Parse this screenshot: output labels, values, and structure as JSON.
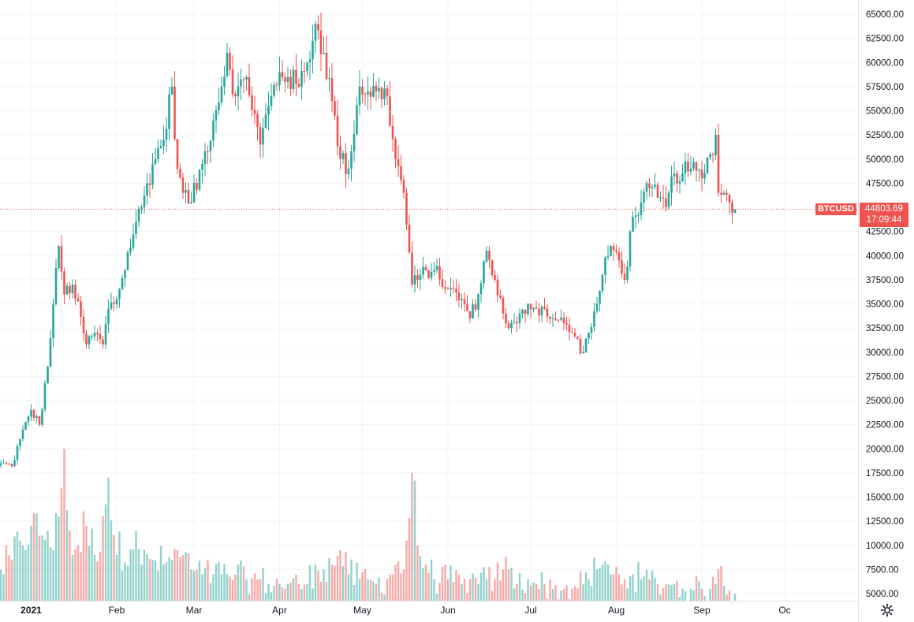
{
  "chart_data": {
    "type": "candlestick",
    "symbol": "BTCUSD",
    "last_price": "44803.69",
    "countdown": "17:09:44",
    "last_price_value": 44803.69,
    "ylim": [
      4500,
      66000
    ],
    "y_ticks": [
      "65000.00",
      "62500.00",
      "60000.00",
      "57500.00",
      "55000.00",
      "52500.00",
      "50000.00",
      "47500.00",
      "42500.00",
      "40000.00",
      "37500.00",
      "35000.00",
      "32500.00",
      "30000.00",
      "27500.00",
      "25000.00",
      "22500.00",
      "20000.00",
      "17500.00",
      "15000.00",
      "12500.00",
      "10000.00",
      "7500.00",
      "5000.00"
    ],
    "x_ticks": [
      {
        "label": "2021",
        "year": true
      },
      {
        "label": "Feb",
        "year": false
      },
      {
        "label": "Mar",
        "year": false
      },
      {
        "label": "Apr",
        "year": false
      },
      {
        "label": "May",
        "year": false
      },
      {
        "label": "Jun",
        "year": false
      },
      {
        "label": "Jul",
        "year": false
      },
      {
        "label": "Aug",
        "year": false
      },
      {
        "label": "Sep",
        "year": false
      },
      {
        "label": "Oc",
        "year": false
      }
    ],
    "x_tick_dates": [
      "2021-01-01",
      "2021-02-01",
      "2021-03-01",
      "2021-04-01",
      "2021-05-01",
      "2021-06-01",
      "2021-07-01",
      "2021-08-01",
      "2021-09-01",
      "2021-10-01"
    ],
    "start_date": "2020-12-21",
    "anchors": [
      [
        "2020-12-21",
        18500,
        7500
      ],
      [
        "2020-12-25",
        18200,
        8500
      ],
      [
        "2020-12-28",
        21000,
        10500
      ],
      [
        "2021-01-01",
        24000,
        12000
      ],
      [
        "2021-01-04",
        22500,
        11000
      ],
      [
        "2021-01-07",
        28500,
        11500
      ],
      [
        "2021-01-09",
        35000,
        9500
      ],
      [
        "2021-01-11",
        41000,
        13000
      ],
      [
        "2021-01-13",
        36000,
        20000
      ],
      [
        "2021-01-16",
        37000,
        9000
      ],
      [
        "2021-01-21",
        30800,
        12000
      ],
      [
        "2021-01-24",
        32000,
        9000
      ],
      [
        "2021-01-27",
        30800,
        13000
      ],
      [
        "2021-01-29",
        34500,
        17000
      ],
      [
        "2021-02-01",
        35500,
        9000
      ],
      [
        "2021-02-08",
        43500,
        11500
      ],
      [
        "2021-02-10",
        45000,
        8000
      ],
      [
        "2021-02-14",
        49500,
        8500
      ],
      [
        "2021-02-18",
        52000,
        8000
      ],
      [
        "2021-02-21",
        57500,
        8500
      ],
      [
        "2021-02-23",
        49000,
        9500
      ],
      [
        "2021-02-25",
        46500,
        9000
      ],
      [
        "2021-02-28",
        45500,
        7500
      ],
      [
        "2021-03-04",
        49500,
        7000
      ],
      [
        "2021-03-08",
        54000,
        7000
      ],
      [
        "2021-03-11",
        57500,
        7000
      ],
      [
        "2021-03-13",
        61000,
        7000
      ],
      [
        "2021-03-16",
        56500,
        7000
      ],
      [
        "2021-03-20",
        58500,
        6500
      ],
      [
        "2021-03-25",
        51500,
        6500
      ],
      [
        "2021-03-28",
        55500,
        6000
      ],
      [
        "2021-04-01",
        59000,
        6000
      ],
      [
        "2021-04-04",
        58500,
        6000
      ],
      [
        "2021-04-08",
        57500,
        6000
      ],
      [
        "2021-04-11",
        60000,
        6000
      ],
      [
        "2021-04-14",
        64000,
        8000
      ],
      [
        "2021-04-17",
        61000,
        7500
      ],
      [
        "2021-04-20",
        56000,
        8000
      ],
      [
        "2021-04-23",
        50000,
        9500
      ],
      [
        "2021-04-26",
        49000,
        7000
      ],
      [
        "2021-04-30",
        57500,
        6500
      ],
      [
        "2021-05-03",
        57000,
        6500
      ],
      [
        "2021-05-06",
        57000,
        6000
      ],
      [
        "2021-05-10",
        56500,
        6500
      ],
      [
        "2021-05-13",
        50000,
        8000
      ],
      [
        "2021-05-16",
        46500,
        7500
      ],
      [
        "2021-05-19",
        37000,
        17500
      ],
      [
        "2021-05-21",
        37500,
        10000
      ],
      [
        "2021-05-24",
        38500,
        8000
      ],
      [
        "2021-05-27",
        38500,
        6500
      ],
      [
        "2021-06-01",
        36500,
        6500
      ],
      [
        "2021-06-06",
        35500,
        6000
      ],
      [
        "2021-06-09",
        33500,
        6500
      ],
      [
        "2021-06-12",
        36000,
        6000
      ],
      [
        "2021-06-15",
        40500,
        6500
      ],
      [
        "2021-06-18",
        37500,
        6500
      ],
      [
        "2021-06-21",
        34000,
        7500
      ],
      [
        "2021-06-23",
        32500,
        7500
      ],
      [
        "2021-06-26",
        33000,
        6000
      ],
      [
        "2021-06-30",
        35000,
        6500
      ],
      [
        "2021-07-03",
        34500,
        6000
      ],
      [
        "2021-07-06",
        34500,
        6000
      ],
      [
        "2021-07-09",
        33500,
        5500
      ],
      [
        "2021-07-13",
        33000,
        5500
      ],
      [
        "2021-07-16",
        32000,
        5500
      ],
      [
        "2021-07-20",
        30000,
        6000
      ],
      [
        "2021-07-22",
        32000,
        6500
      ],
      [
        "2021-07-25",
        35000,
        7500
      ],
      [
        "2021-07-27",
        38000,
        8000
      ],
      [
        "2021-07-30",
        41000,
        7000
      ],
      [
        "2021-08-02",
        39500,
        7000
      ],
      [
        "2021-08-04",
        37500,
        6500
      ],
      [
        "2021-08-07",
        44000,
        7000
      ],
      [
        "2021-08-10",
        45500,
        6500
      ],
      [
        "2021-08-13",
        47000,
        6500
      ],
      [
        "2021-08-16",
        46000,
        6000
      ],
      [
        "2021-08-19",
        45000,
        6000
      ],
      [
        "2021-08-22",
        48500,
        6000
      ],
      [
        "2021-08-25",
        48500,
        5500
      ],
      [
        "2021-08-28",
        49000,
        5500
      ],
      [
        "2021-09-01",
        48000,
        5500
      ],
      [
        "2021-09-04",
        50500,
        5500
      ],
      [
        "2021-09-06",
        52500,
        6000
      ],
      [
        "2021-09-07",
        46500,
        7500
      ],
      [
        "2021-09-09",
        46500,
        5800
      ],
      [
        "2021-09-11",
        45500,
        5300
      ],
      [
        "2021-09-13",
        44800,
        5000
      ]
    ]
  }
}
